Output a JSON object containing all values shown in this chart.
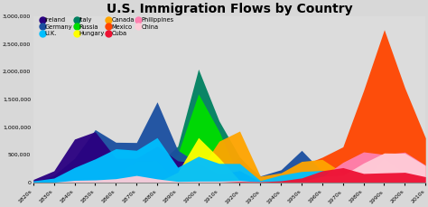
{
  "title": "U.S. Immigration Flows by Country",
  "decades": [
    "1820s",
    "1830s",
    "1840s",
    "1850s",
    "1860s",
    "1870s",
    "1880s",
    "1890s",
    "1900s",
    "1910s",
    "1920s",
    "1930s",
    "1940s",
    "1950s",
    "1960s",
    "1970s",
    "1980s",
    "1990s",
    "2000s",
    "2010s"
  ],
  "series": [
    {
      "name": "Ireland",
      "color": "#2a0080",
      "values": [
        50000,
        207000,
        780000,
        914000,
        435000,
        436000,
        655000,
        388000,
        339000,
        146000,
        211000,
        13000,
        19000,
        48000,
        32000,
        11000,
        32000,
        56000,
        25000,
        15000
      ]
    },
    {
      "name": "Germany",
      "color": "#1a4fa0",
      "values": [
        6000,
        124000,
        434000,
        951000,
        723000,
        718000,
        1452000,
        579000,
        341000,
        143000,
        412000,
        114000,
        226000,
        576000,
        190000,
        74000,
        85000,
        92000,
        68000,
        40000
      ]
    },
    {
      "name": "U.K.",
      "color": "#00bfff",
      "values": [
        25000,
        75000,
        267000,
        423000,
        606000,
        578000,
        807000,
        271000,
        469000,
        341000,
        339000,
        31000,
        131000,
        195000,
        213000,
        137000,
        159000,
        156000,
        159000,
        95000
      ]
    },
    {
      "name": "Italy",
      "color": "#008060",
      "values": [
        0,
        0,
        1000,
        9000,
        12000,
        56000,
        307000,
        651000,
        2045000,
        1109000,
        455000,
        68000,
        57000,
        185000,
        206000,
        130000,
        33000,
        67000,
        55000,
        20000
      ]
    },
    {
      "name": "Russia",
      "color": "#00dd00",
      "values": [
        0,
        0,
        0,
        0,
        2000,
        39000,
        213000,
        505000,
        1597000,
        921000,
        61000,
        1000,
        5000,
        48000,
        45000,
        39000,
        57000,
        433000,
        167000,
        75000
      ]
    },
    {
      "name": "Hungary",
      "color": "#ffff00",
      "values": [
        0,
        0,
        0,
        0,
        0,
        0,
        0,
        181000,
        808000,
        442000,
        30000,
        6000,
        3000,
        36000,
        17000,
        6000,
        6000,
        9000,
        9000,
        5000
      ]
    },
    {
      "name": "Canada",
      "color": "#ffa500",
      "values": [
        2000,
        13000,
        42000,
        59000,
        154000,
        383000,
        393000,
        3000,
        179000,
        742000,
        925000,
        109000,
        171000,
        377000,
        413000,
        169000,
        157000,
        194000,
        236000,
        93000
      ]
    },
    {
      "name": "Mexico",
      "color": "#ff4500",
      "values": [
        0,
        0,
        3000,
        3000,
        2000,
        5000,
        1000,
        1000,
        50000,
        219000,
        459000,
        22000,
        61000,
        300000,
        453000,
        640000,
        1656000,
        2757000,
        1704000,
        800000
      ]
    },
    {
      "name": "Cuba",
      "color": "#ee1133",
      "values": [
        0,
        0,
        0,
        0,
        0,
        0,
        0,
        0,
        0,
        0,
        15000,
        9000,
        26000,
        78000,
        208000,
        264000,
        159000,
        170000,
        180000,
        100000
      ]
    },
    {
      "name": "Philippines",
      "color": "#ff80b0",
      "values": [
        0,
        0,
        0,
        0,
        0,
        0,
        0,
        0,
        0,
        0,
        0,
        6000,
        4000,
        19000,
        98000,
        360000,
        549000,
        503000,
        545000,
        310000
      ]
    },
    {
      "name": "China",
      "color": "#ffccd8",
      "values": [
        0,
        0,
        35000,
        42000,
        64000,
        123000,
        61000,
        15000,
        21000,
        22000,
        30000,
        6000,
        16000,
        10000,
        109000,
        124000,
        347000,
        529000,
        524000,
        300000
      ]
    }
  ],
  "ylim": [
    0,
    3000000
  ],
  "yticks": [
    0,
    500000,
    1000000,
    1500000,
    2000000,
    2500000,
    3000000
  ],
  "ytick_labels": [
    "0",
    "500,000",
    "1,000,000",
    "1,500,000",
    "2,000,000",
    "2,500,000",
    "3,000,000"
  ],
  "background_color": "#d8d8d8",
  "plot_bg_color": "#dcdcdc",
  "title_fontsize": 10
}
